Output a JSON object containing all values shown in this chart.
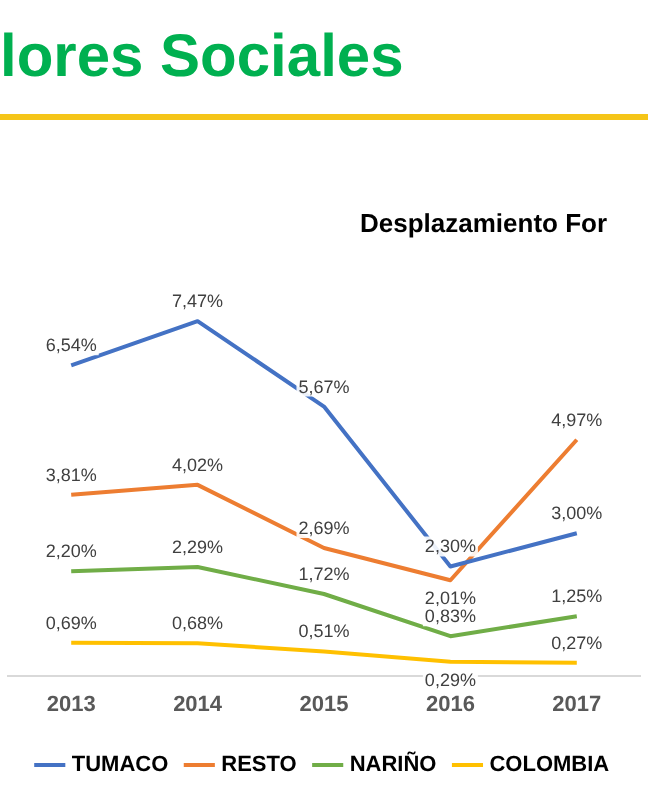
{
  "chart_data": {
    "type": "line",
    "title": "lores Sociales",
    "subtitle": "Desplazamiento For",
    "categories": [
      "2013",
      "2014",
      "2015",
      "2016",
      "2017"
    ],
    "series": [
      {
        "name": "TUMACO",
        "color": "#4472c4",
        "values": [
          6.54,
          7.47,
          5.67,
          2.3,
          3.0
        ],
        "value_labels": [
          "6,54%",
          "7,47%",
          "5,67%",
          "2,30%",
          "3,00%"
        ]
      },
      {
        "name": "RESTO",
        "color": "#ed7d31",
        "values": [
          3.81,
          4.02,
          2.69,
          2.01,
          4.97
        ],
        "value_labels": [
          "3,81%",
          "4,02%",
          "2,69%",
          "2,01%",
          "4,97%"
        ]
      },
      {
        "name": "NARIÑO",
        "color": "#70ad47",
        "values": [
          2.2,
          2.29,
          1.72,
          0.83,
          1.25
        ],
        "value_labels": [
          "2,20%",
          "2,29%",
          "1,72%",
          "0,83%",
          "1,25%"
        ]
      },
      {
        "name": "COLOMBIA",
        "color": "#ffc000",
        "values": [
          0.69,
          0.68,
          0.51,
          0.29,
          0.27
        ],
        "value_labels": [
          "0,69%",
          "0,68%",
          "0,51%",
          "0,29%",
          "0,27%"
        ]
      }
    ],
    "grid": false,
    "legend": "bottom",
    "marker": "none",
    "line_style": "solid"
  }
}
